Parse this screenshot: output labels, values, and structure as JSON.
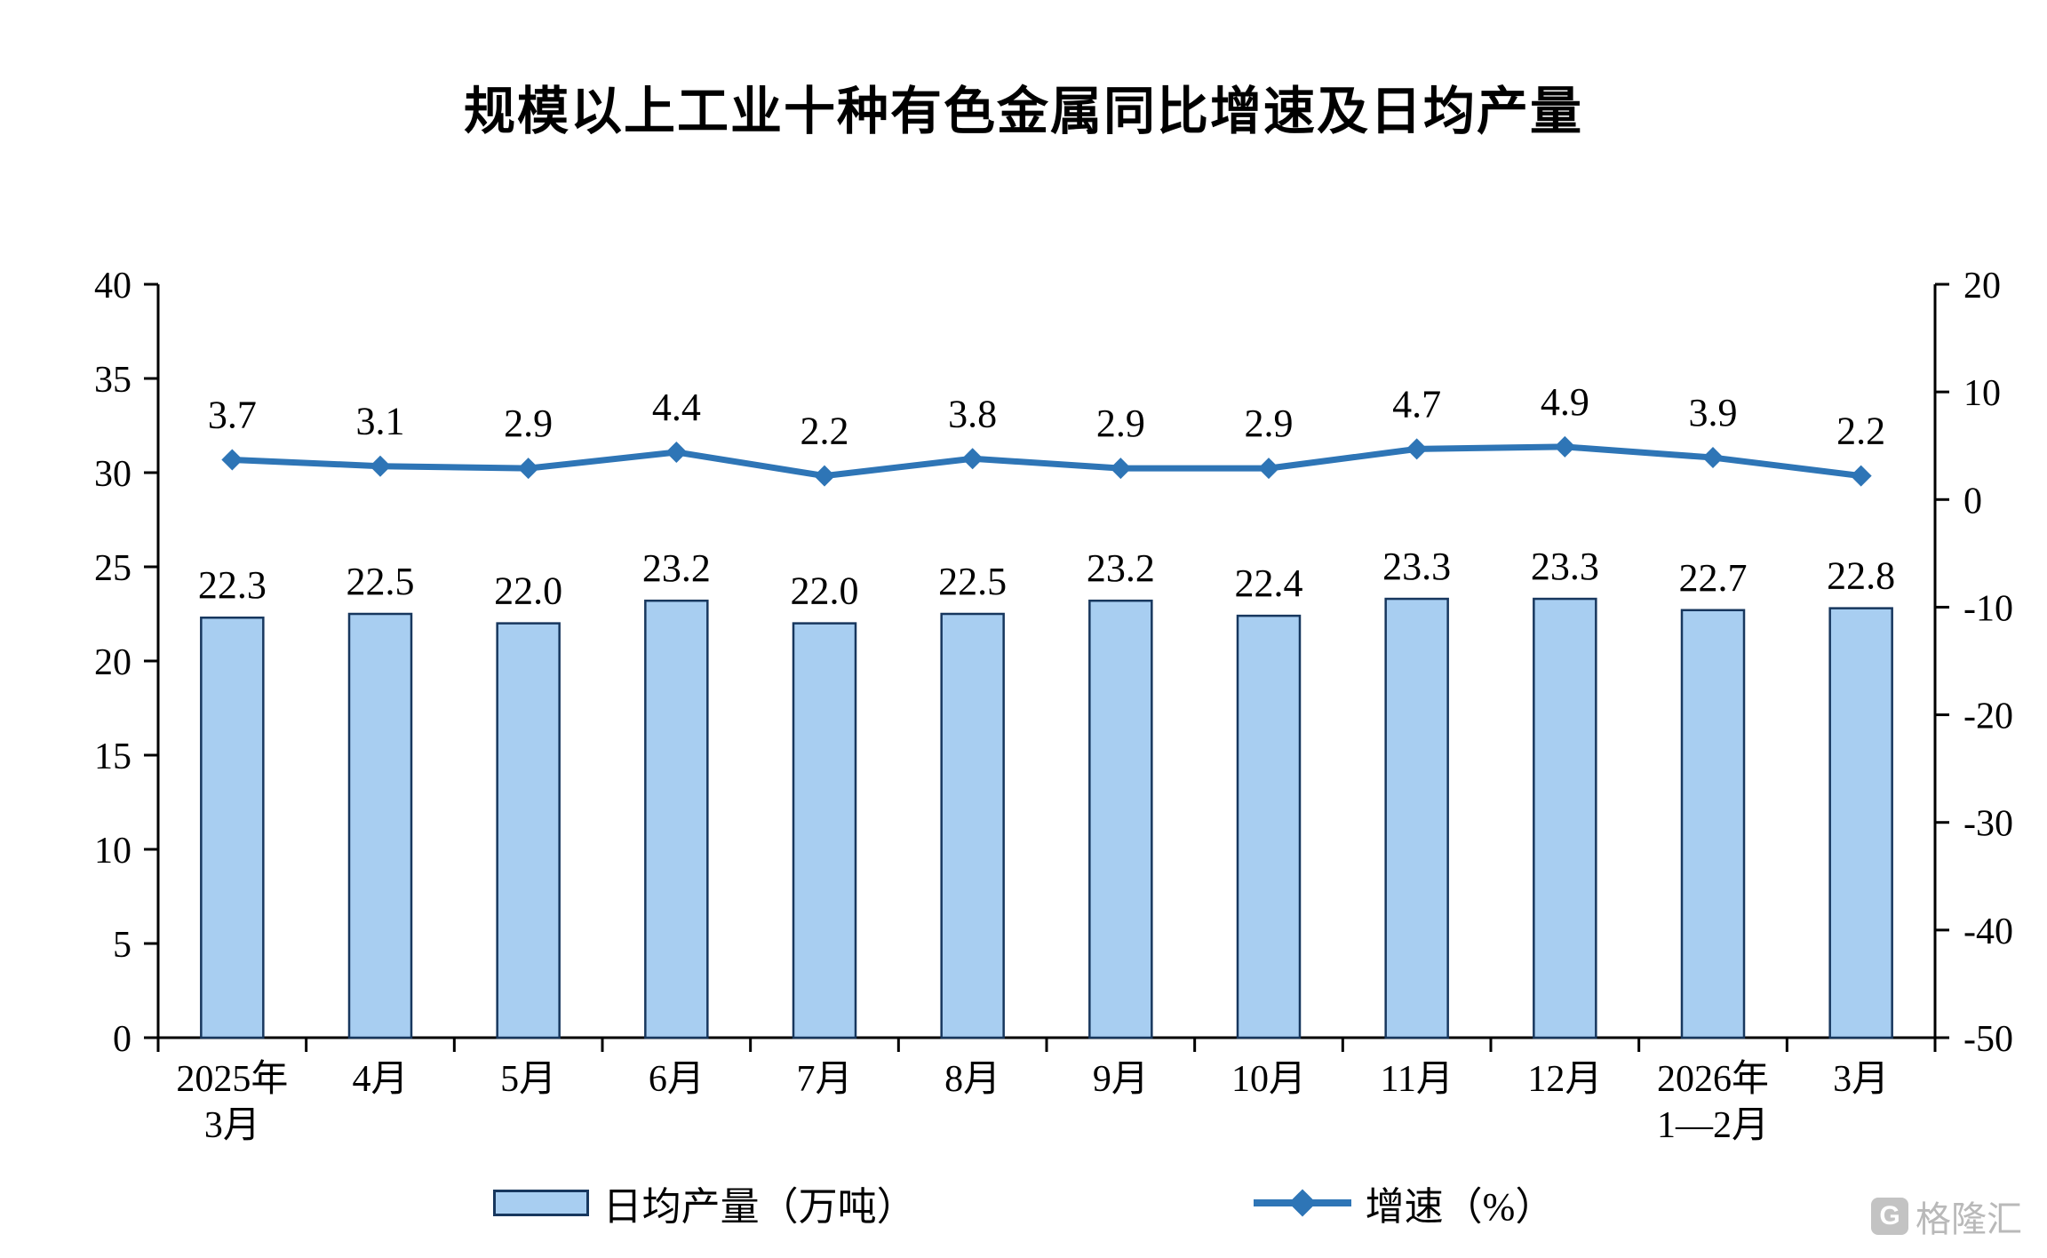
{
  "title": "规模以上工业十种有色金属同比增速及日均产量",
  "chart_data": {
    "type": "bar",
    "subtype": "bar+line dual-axis",
    "categories": [
      [
        "2025年",
        "3月"
      ],
      [
        "4月"
      ],
      [
        "5月"
      ],
      [
        "6月"
      ],
      [
        "7月"
      ],
      [
        "8月"
      ],
      [
        "9月"
      ],
      [
        "10月"
      ],
      [
        "11月"
      ],
      [
        "12月"
      ],
      [
        "2026年",
        "1—2月"
      ],
      [
        "3月"
      ]
    ],
    "series": [
      {
        "name": "日均产量（万吨）",
        "type": "bar",
        "axis": "left",
        "values": [
          22.3,
          22.5,
          22.0,
          23.2,
          22.0,
          22.5,
          23.2,
          22.4,
          23.3,
          23.3,
          22.7,
          22.8
        ]
      },
      {
        "name": "增速（%）",
        "type": "line",
        "axis": "right",
        "values": [
          3.7,
          3.1,
          2.9,
          4.4,
          2.2,
          3.8,
          2.9,
          2.9,
          4.7,
          4.9,
          3.9,
          2.2
        ]
      }
    ],
    "left_axis": {
      "min": 0,
      "max": 40,
      "step": 5,
      "ticks": [
        "0",
        "5",
        "10",
        "15",
        "20",
        "25",
        "30",
        "35",
        "40"
      ]
    },
    "right_axis": {
      "min": -50,
      "max": 20,
      "step": 10,
      "ticks": [
        "-50",
        "-40",
        "-30",
        "-20",
        "-10",
        "0",
        "10",
        "20"
      ]
    },
    "grid": false,
    "legend_position": "bottom",
    "data_labels": true
  },
  "colors": {
    "bar_fill": "#A8CEF1",
    "bar_stroke": "#17375E",
    "line": "#2E75B6",
    "axis": "#000000",
    "text": "#000000"
  },
  "legend": {
    "bar_label": "日均产量（万吨）",
    "line_label": "增速（%）"
  },
  "watermark": {
    "icon": "G",
    "text": "格隆汇"
  }
}
